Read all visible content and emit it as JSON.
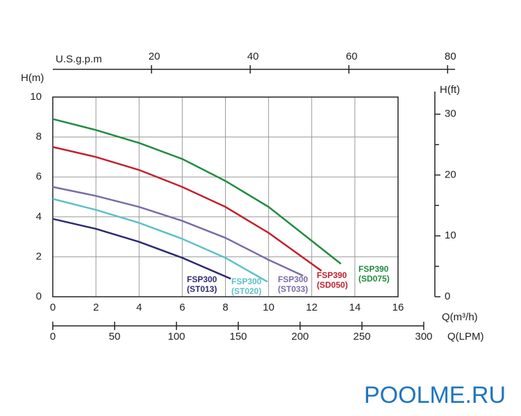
{
  "chart_data": {
    "type": "line",
    "xlabel": "Q(m³/h)",
    "ylabel": "H(m)",
    "xlim": [
      0,
      16
    ],
    "xticks": [
      0,
      2,
      4,
      6,
      8,
      10,
      12,
      14,
      16
    ],
    "ylim": [
      0,
      10
    ],
    "yticks": [
      0,
      2,
      4,
      6,
      8,
      10
    ],
    "grid": true,
    "gpm_axis": {
      "label": "U.S.g.p.m",
      "lim": [
        0,
        81.5
      ],
      "ticks": [
        20,
        40,
        60,
        80
      ]
    },
    "ft_axis": {
      "label": "H(ft)",
      "lim": [
        0,
        32.81
      ],
      "ticks": [
        0,
        10,
        20,
        30
      ],
      "minor_ticks": [
        5,
        15,
        25
      ]
    },
    "lpm_axis": {
      "label": "Q(LPM)",
      "lim": [
        0,
        300
      ],
      "ticks": [
        0,
        50,
        100,
        150,
        200,
        250,
        300
      ]
    },
    "series": [
      {
        "name": "FSP300",
        "model": "(ST013)",
        "color": "#2b2a72",
        "x": [
          0,
          2,
          4,
          6,
          8.25
        ],
        "values": [
          3.9,
          3.4,
          2.75,
          1.95,
          0.9
        ]
      },
      {
        "name": "FSP300",
        "model": "(ST020)",
        "color": "#5cc0c6",
        "x": [
          0,
          2,
          4,
          6,
          8,
          9.95
        ],
        "values": [
          4.9,
          4.35,
          3.7,
          2.9,
          1.95,
          0.75
        ]
      },
      {
        "name": "FSP300",
        "model": "(ST033)",
        "color": "#7b6ba8",
        "x": [
          0,
          2,
          4,
          6,
          8,
          10,
          11.6
        ],
        "values": [
          5.5,
          5.05,
          4.5,
          3.8,
          2.95,
          1.85,
          1.05
        ]
      },
      {
        "name": "FSP390",
        "model": "(SD050)",
        "color": "#c3202c",
        "x": [
          0,
          2,
          4,
          6,
          8,
          10,
          12.45
        ],
        "values": [
          7.5,
          7.0,
          6.35,
          5.5,
          4.5,
          3.2,
          1.3
        ]
      },
      {
        "name": "FSP390",
        "model": "(SD075)",
        "color": "#1f8b40",
        "x": [
          0,
          2,
          4,
          6,
          8,
          10,
          12,
          13.35
        ],
        "values": [
          8.9,
          8.35,
          7.7,
          6.9,
          5.8,
          4.5,
          2.8,
          1.65
        ]
      }
    ]
  },
  "watermark": "POOLME.RU"
}
